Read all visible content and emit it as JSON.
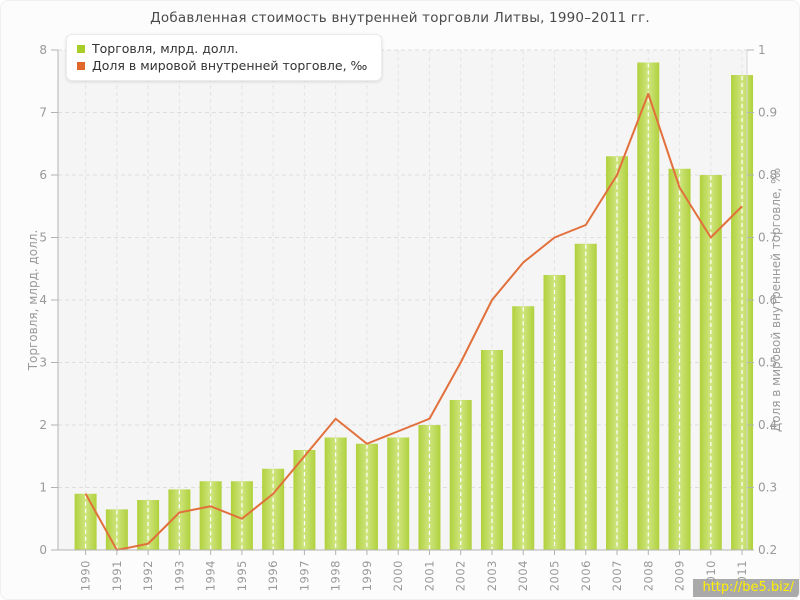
{
  "title": "Добавленная стоимость внутренней торговли Литвы, 1990–2011 гг.",
  "watermark": "http://be5.biz/",
  "colors": {
    "bar_edge": "#b0d13c",
    "bar_center": "#cfe581",
    "line": "#e2703d",
    "legend_bar_swatch": "#a8cc28",
    "legend_line_swatch": "#e0662a",
    "plot_bg": "#f5f5f5",
    "grid_h": "#dedede",
    "grid_v": "#e4e4e4",
    "grid_white": "#ffffff",
    "axis": "#b3b3b3",
    "tick_text": "#999999",
    "title_text": "#4a4a4a"
  },
  "chart_data": {
    "type": "bar",
    "title": "Добавленная стоимость внутренней торговли Литвы, 1990–2011 гг.",
    "categories": [
      "1990",
      "1991",
      "1992",
      "1993",
      "1994",
      "1995",
      "1996",
      "1997",
      "1998",
      "1999",
      "2000",
      "2001",
      "2002",
      "2003",
      "2004",
      "2005",
      "2006",
      "2007",
      "2008",
      "2009",
      "2010",
      "2011"
    ],
    "series": [
      {
        "name": "Торговля, млрд. долл.",
        "type": "bar",
        "axis": "left",
        "values": [
          0.9,
          0.65,
          0.8,
          0.97,
          1.1,
          1.1,
          1.3,
          1.6,
          1.8,
          1.7,
          1.8,
          2.0,
          2.4,
          3.2,
          3.9,
          4.4,
          4.9,
          6.3,
          7.8,
          6.1,
          6.0,
          7.6
        ]
      },
      {
        "name": "Доля в мировой внутренней торговле, ‰",
        "type": "line",
        "axis": "right",
        "values": [
          0.29,
          0.2,
          0.21,
          0.26,
          0.27,
          0.25,
          0.29,
          0.35,
          0.41,
          0.37,
          0.39,
          0.41,
          0.5,
          0.6,
          0.66,
          0.7,
          0.72,
          0.8,
          0.93,
          0.78,
          0.7,
          0.75
        ]
      }
    ],
    "axes": {
      "left": {
        "title": "Торговля, млрд. долл.",
        "min": 0,
        "max": 8,
        "step": 1
      },
      "right": {
        "title": "Доля в мировой внутренней торговле, ‰",
        "min": 0.2,
        "max": 1,
        "step": 0.1
      }
    },
    "grid": true,
    "legend_position": "top-left"
  }
}
